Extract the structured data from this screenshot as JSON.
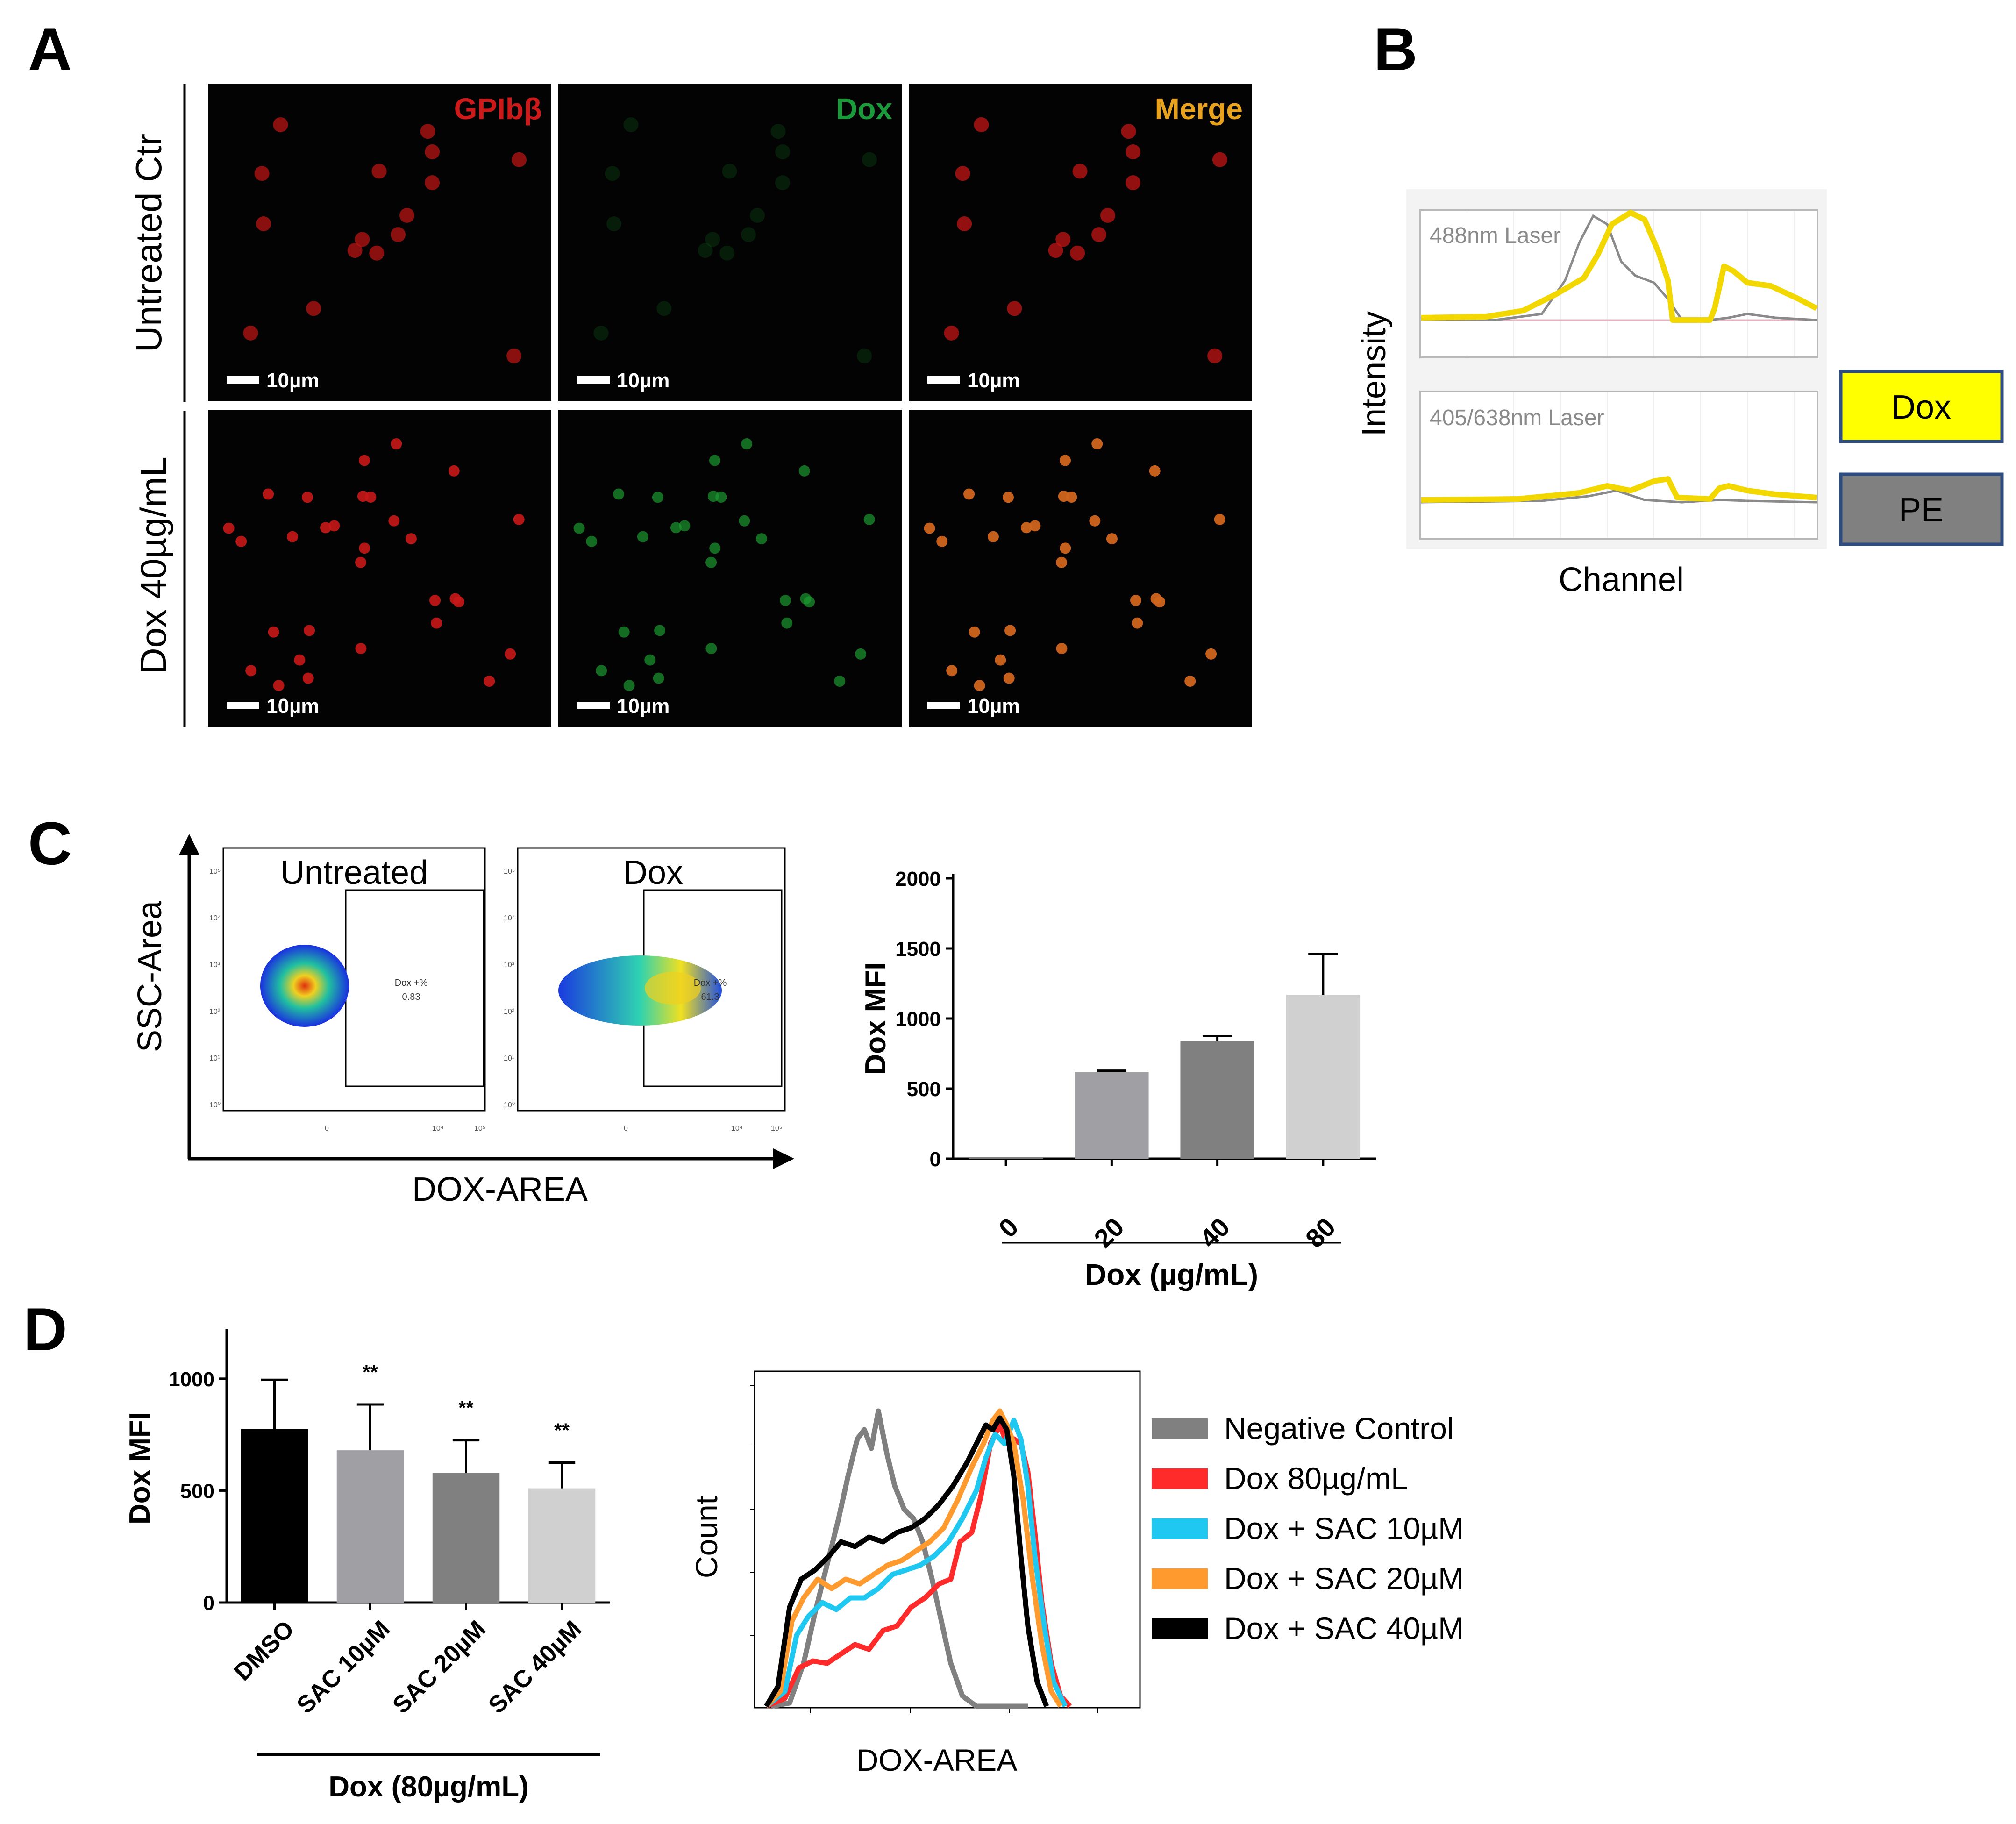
{
  "panels": {
    "a": "A",
    "b": "B",
    "c": "C",
    "d": "D"
  },
  "panel_a": {
    "rows": [
      "Untreated Ctr",
      "Dox 40µg/mL"
    ],
    "columns": [
      {
        "label": "GPIbβ",
        "color": "#cc1a1a"
      },
      {
        "label": "Dox",
        "color": "#1a9a3a"
      },
      {
        "label": "Merge",
        "color": "#e8a21e"
      }
    ],
    "scale_bar": "10µm"
  },
  "panel_b": {
    "ylabel": "Intensity",
    "xlabel": "Channel",
    "top_label": "488nm Laser",
    "bottom_label": "405/638nm Laser",
    "legend": [
      {
        "label": "Dox",
        "color": "#ffff00"
      },
      {
        "label": "PE",
        "color": "#808080"
      }
    ]
  },
  "panel_c": {
    "flow": {
      "ylabel": "SSC-Area",
      "xlabel": "DOX-AREA",
      "plots": [
        {
          "title": "Untreated",
          "gate_label": "Dox +%",
          "gate_value": "0.83"
        },
        {
          "title": "Dox",
          "gate_label": "Dox +%",
          "gate_value": "61.3"
        }
      ]
    }
  },
  "panel_d": {
    "hist": {
      "ylabel": "Count",
      "xlabel": "DOX-AREA",
      "legend": [
        {
          "label": "Negative Control",
          "color": "#808080"
        },
        {
          "label": "Dox 80µg/mL",
          "color": "#ff2a2a"
        },
        {
          "label": "Dox + SAC 10µM",
          "color": "#1ec8f0"
        },
        {
          "label": "Dox + SAC 20µM",
          "color": "#ff9a2e"
        },
        {
          "label": "Dox + SAC 40µM",
          "color": "#000000"
        }
      ]
    }
  },
  "chart_data": [
    {
      "id": "c-bar",
      "type": "bar",
      "categories": [
        "0",
        "20",
        "40",
        "80"
      ],
      "values": [
        5,
        620,
        840,
        1170
      ],
      "errors": [
        0,
        8,
        35,
        290
      ],
      "colors": [
        "#777777",
        "#a0a0a4",
        "#808080",
        "#d0d0d0"
      ],
      "ylabel": "Dox MFI",
      "xlabel": "Dox (µg/mL)",
      "ylim": [
        0,
        2000
      ],
      "yticks": [
        0,
        500,
        1000,
        1500,
        2000
      ]
    },
    {
      "id": "d-bar",
      "type": "bar",
      "categories": [
        "DMSO",
        "SAC 10µM",
        "SAC 20µM",
        "SAC 40µM"
      ],
      "values": [
        775,
        680,
        580,
        510
      ],
      "errors": [
        220,
        205,
        145,
        115
      ],
      "colors": [
        "#000000",
        "#a0a0a4",
        "#808080",
        "#d0d0d0"
      ],
      "significance": [
        "",
        "**",
        "**",
        "**"
      ],
      "ylabel": "Dox MFI",
      "xlabel": "Dox (80µg/mL)",
      "ylim": [
        0,
        1200
      ],
      "yticks": [
        0,
        500,
        1000
      ]
    }
  ]
}
